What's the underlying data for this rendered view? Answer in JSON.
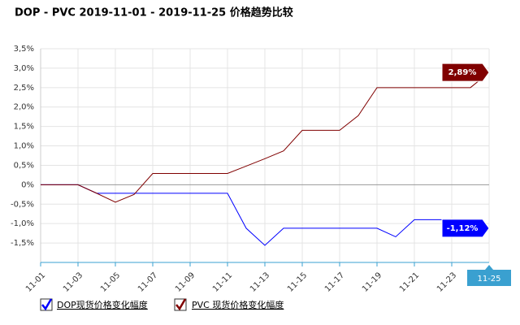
{
  "chart_data": {
    "type": "line",
    "title": "DOP - PVC 2019-11-01 - 2019-11-25 价格趋势比较",
    "categories": [
      "11-01",
      null,
      "11-03",
      null,
      "11-05",
      null,
      "11-07",
      null,
      "11-09",
      null,
      "11-11",
      null,
      "11-13",
      null,
      "11-15",
      null,
      "11-17",
      null,
      "11-19",
      null,
      "11-21",
      null,
      "11-23",
      null,
      "11-25"
    ],
    "series": [
      {
        "name": "DOP现货价格变化幅度",
        "color": "#0000ff",
        "values": [
          0,
          0,
          0,
          -0.22,
          -0.22,
          -0.22,
          -0.22,
          -0.22,
          -0.22,
          -0.22,
          -0.22,
          -1.12,
          -1.56,
          -1.12,
          -1.12,
          -1.12,
          -1.12,
          -1.12,
          -1.12,
          -1.34,
          -0.9,
          -0.9,
          -0.9,
          -0.9,
          -1.12
        ],
        "value_labels": [
          null,
          null,
          null,
          null,
          null,
          null,
          null,
          null,
          null,
          null,
          null,
          null,
          null,
          null,
          null,
          null,
          null,
          null,
          null,
          null,
          null,
          null,
          null,
          null,
          "-1,12%"
        ]
      },
      {
        "name": "PVC 现货价格变化幅度",
        "color": "#800000",
        "values": [
          0,
          0,
          0,
          -0.22,
          -0.45,
          -0.25,
          0.29,
          0.29,
          0.29,
          0.29,
          0.29,
          0.48,
          0.67,
          0.87,
          1.4,
          1.4,
          1.4,
          1.78,
          2.5,
          2.5,
          2.5,
          2.5,
          2.5,
          2.5,
          2.89
        ],
        "value_labels": [
          null,
          null,
          null,
          null,
          null,
          null,
          null,
          null,
          null,
          null,
          null,
          null,
          null,
          null,
          null,
          null,
          null,
          null,
          null,
          null,
          null,
          null,
          null,
          null,
          "2,89%"
        ]
      }
    ],
    "ylim": [
      -2,
      3.5
    ],
    "yticks": [
      {
        "value": -1.5,
        "label": "-1,5%"
      },
      {
        "value": -1,
        "label": "-1,0%"
      },
      {
        "value": -0.5,
        "label": "-0,5%"
      },
      {
        "value": 0,
        "label": "0%"
      },
      {
        "value": 0.5,
        "label": "0,5%"
      },
      {
        "value": 1,
        "label": "1,0%"
      },
      {
        "value": 1.5,
        "label": "1,5%"
      },
      {
        "value": 2,
        "label": "2,0%"
      },
      {
        "value": 2.5,
        "label": "2,5%"
      },
      {
        "value": 3,
        "label": "3,0%"
      },
      {
        "value": 3.5,
        "label": "3,5%"
      }
    ],
    "grid": true
  }
}
